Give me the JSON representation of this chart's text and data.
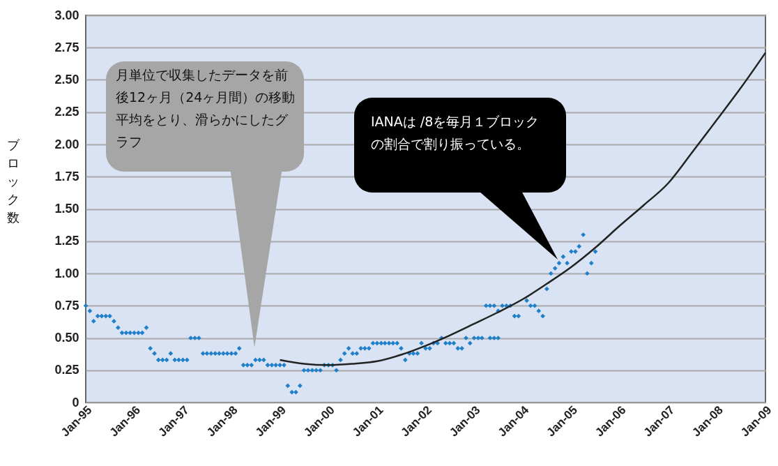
{
  "chart_data": {
    "type": "scatter",
    "ylabel": "ブロック数",
    "xlim": [
      "1995-01",
      "2009-01"
    ],
    "ylim": [
      0,
      3
    ],
    "xticks": [
      {
        "value": "1995-01",
        "label": "Jan-95"
      },
      {
        "value": "1996-01",
        "label": "Jan-96"
      },
      {
        "value": "1997-01",
        "label": "Jan-97"
      },
      {
        "value": "1998-01",
        "label": "Jan-98"
      },
      {
        "value": "1999-01",
        "label": "Jan-99"
      },
      {
        "value": "2000-01",
        "label": "Jan-00"
      },
      {
        "value": "2001-01",
        "label": "Jan-01"
      },
      {
        "value": "2002-01",
        "label": "Jan-02"
      },
      {
        "value": "2003-01",
        "label": "Jan-03"
      },
      {
        "value": "2004-01",
        "label": "Jan-04"
      },
      {
        "value": "2005-01",
        "label": "Jan-05"
      },
      {
        "value": "2006-01",
        "label": "Jan-06"
      },
      {
        "value": "2007-01",
        "label": "Jan-07"
      },
      {
        "value": "2008-01",
        "label": "Jan-08"
      },
      {
        "value": "2009-01",
        "label": "Jan-09"
      }
    ],
    "yticks": [
      0,
      0.25,
      {
        "value": 0.5,
        "label": "0.50"
      },
      0.75,
      {
        "value": 1,
        "label": "1.00"
      },
      1.25,
      {
        "value": 1.5,
        "label": "1.50"
      },
      1.75,
      {
        "value": 2,
        "label": "2.00"
      },
      2.25,
      {
        "value": 2.5,
        "label": "2.50"
      },
      2.75,
      {
        "value": 3,
        "label": "3.00"
      }
    ],
    "grid": "y",
    "series": [
      {
        "color": "#1f7fc8",
        "marker": "diamond",
        "x": [
          "1995-01",
          "1995-02",
          "1995-03",
          "1995-04",
          "1995-05",
          "1995-06",
          "1995-07",
          "1995-08",
          "1995-09",
          "1995-10",
          "1995-11",
          "1995-12",
          "1996-01",
          "1996-02",
          "1996-03",
          "1996-04",
          "1996-05",
          "1996-06",
          "1996-07",
          "1996-08",
          "1996-09",
          "1996-10",
          "1996-11",
          "1996-12",
          "1997-01",
          "1997-02",
          "1997-03",
          "1997-04",
          "1997-05",
          "1997-06",
          "1997-07",
          "1997-08",
          "1997-09",
          "1997-10",
          "1997-11",
          "1997-12",
          "1998-01",
          "1998-02",
          "1998-03",
          "1998-04",
          "1998-05",
          "1998-06",
          "1998-07",
          "1998-08",
          "1998-09",
          "1998-10",
          "1998-11",
          "1998-12",
          "1999-01",
          "1999-02",
          "1999-03",
          "1999-04",
          "1999-05",
          "1999-06",
          "1999-07",
          "1999-08",
          "1999-09",
          "1999-10",
          "1999-11",
          "1999-12",
          "2000-01",
          "2000-02",
          "2000-03",
          "2000-04",
          "2000-05",
          "2000-06",
          "2000-07",
          "2000-08",
          "2000-09",
          "2000-10",
          "2000-11",
          "2000-12",
          "2001-01",
          "2001-02",
          "2001-03",
          "2001-04",
          "2001-05",
          "2001-06",
          "2001-07",
          "2001-08",
          "2001-09",
          "2001-10",
          "2001-11",
          "2001-12",
          "2002-01",
          "2002-02",
          "2002-03",
          "2002-04",
          "2002-05",
          "2002-06",
          "2002-07",
          "2002-08",
          "2002-09",
          "2002-10",
          "2002-11",
          "2002-12",
          "2003-01",
          "2003-02",
          "2003-03",
          "2003-04",
          "2003-05",
          "2003-06",
          "2003-05",
          "2003-06",
          "2003-07",
          "2003-07",
          "2003-08",
          "2003-09",
          "2003-10",
          "2003-11",
          "2003-12",
          "2004-02",
          "2004-03",
          "2004-04",
          "2004-05",
          "2004-06",
          "2004-07",
          "2004-08",
          "2004-09",
          "2004-10",
          "2004-11",
          "2004-12",
          "2005-01",
          "2005-02",
          "2005-03",
          "2005-04",
          "2005-05",
          "2005-06",
          "2005-07"
        ],
        "values": [
          0.75,
          0.71,
          0.63,
          0.67,
          0.67,
          0.67,
          0.67,
          0.63,
          0.58,
          0.54,
          0.54,
          0.54,
          0.54,
          0.54,
          0.54,
          0.58,
          0.42,
          0.38,
          0.33,
          0.33,
          0.33,
          0.38,
          0.33,
          0.33,
          0.33,
          0.33,
          0.5,
          0.5,
          0.5,
          0.38,
          0.38,
          0.38,
          0.38,
          0.38,
          0.38,
          0.38,
          0.38,
          0.38,
          0.42,
          0.29,
          0.29,
          0.29,
          0.33,
          0.33,
          0.33,
          0.29,
          0.29,
          0.29,
          0.29,
          0.29,
          0.13,
          0.08,
          0.08,
          0.13,
          0.25,
          0.25,
          0.25,
          0.25,
          0.25,
          0.29,
          0.29,
          0.29,
          0.25,
          0.33,
          0.38,
          0.42,
          0.38,
          0.38,
          0.42,
          0.42,
          0.42,
          0.46,
          0.46,
          0.46,
          0.46,
          0.46,
          0.46,
          0.46,
          0.42,
          0.33,
          0.38,
          0.38,
          0.38,
          0.46,
          0.42,
          0.42,
          0.46,
          0.46,
          0.5,
          0.46,
          0.46,
          0.46,
          0.42,
          0.42,
          0.5,
          0.46,
          0.5,
          0.5,
          0.5,
          0.75,
          0.75,
          0.75,
          0.5,
          0.5,
          0.71,
          0.5,
          0.75,
          0.75,
          0.75,
          0.67,
          0.67,
          0.79,
          0.75,
          0.75,
          0.71,
          0.67,
          0.88,
          1.0,
          1.04,
          1.08,
          1.13,
          1.08,
          1.17,
          1.17,
          1.21,
          1.3,
          1.0,
          1.08,
          1.17
        ]
      },
      {
        "type": "line",
        "color": "#222222",
        "x": [
          "1999-01",
          "1999-07",
          "2000-01",
          "2000-07",
          "2001-01",
          "2001-07",
          "2002-01",
          "2002-07",
          "2003-01",
          "2003-07",
          "2004-01",
          "2004-07",
          "2005-01",
          "2005-07",
          "2006-01",
          "2006-07",
          "2007-01",
          "2007-07",
          "2008-01",
          "2008-07",
          "2009-01"
        ],
        "values": [
          0.33,
          0.3,
          0.29,
          0.3,
          0.32,
          0.37,
          0.44,
          0.52,
          0.61,
          0.7,
          0.8,
          0.92,
          1.05,
          1.2,
          1.37,
          1.53,
          1.7,
          1.94,
          2.19,
          2.44,
          2.71
        ]
      }
    ],
    "annotations": [
      "月単位で収集したデータを前後12ヶ月（24ヶ月間）の移動平均をとり、滑らかにしたグラフ",
      "IANAは /8を毎月１ブロックの割合で割り振っている。"
    ]
  }
}
